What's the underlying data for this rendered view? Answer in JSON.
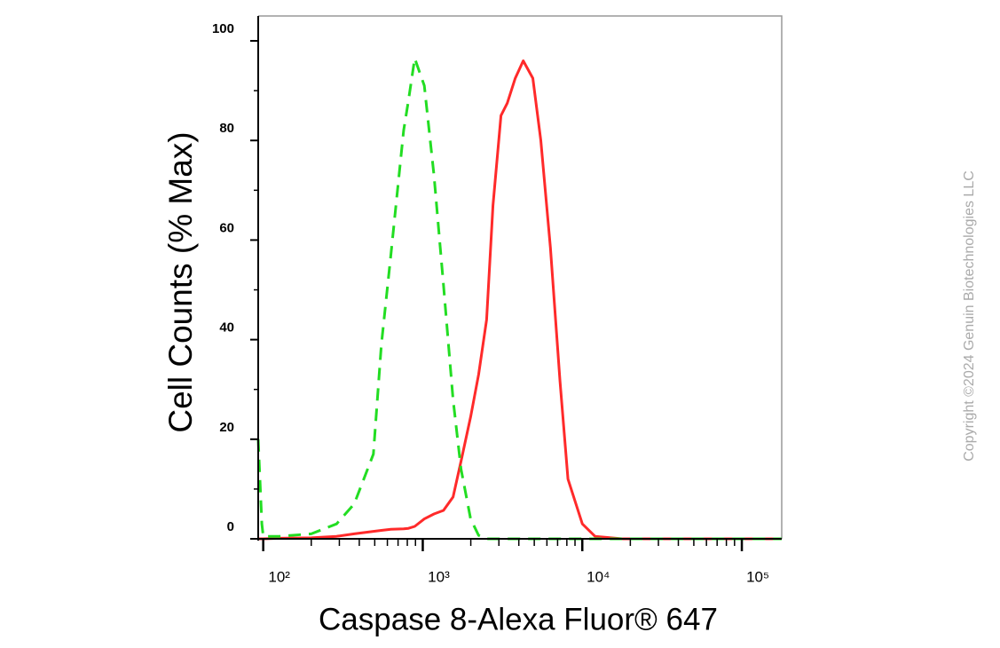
{
  "chart_data": {
    "type": "line",
    "xlabel": "Caspase 8-Alexa Fluor® 647",
    "ylabel": "Cell Counts (% Max)",
    "annotation": "Copyright ©2024 Genuin Biotechnologies LLC",
    "xscale": "log",
    "x": [
      93,
      98,
      100,
      126,
      200,
      288,
      372,
      490,
      550,
      631,
      759,
      813,
      891,
      1023,
      1175,
      1349,
      1549,
      1738,
      1995,
      2239,
      2512,
      2754,
      3090,
      3388,
      3802,
      4266,
      4898,
      5495,
      6310,
      7244,
      8128,
      10000,
      12023,
      17783,
      39811,
      100000,
      177828
    ],
    "series": [
      {
        "color": "#ff2a2a",
        "dash": false,
        "values": [
          0,
          0,
          0,
          0.1,
          0.2,
          0.5,
          1,
          1.5,
          1.7,
          1.9,
          2,
          2.1,
          2.5,
          4,
          5,
          5.7,
          8.4,
          15.6,
          24.5,
          33,
          44,
          67,
          85,
          87.5,
          92.5,
          96,
          92.5,
          80,
          58.5,
          31.7,
          12,
          3,
          0.5,
          0,
          0,
          0,
          0
        ]
      },
      {
        "color": "#22dd22",
        "dash": true,
        "values": [
          20,
          3,
          0.5,
          0.5,
          1,
          3,
          7,
          17,
          39,
          57,
          82,
          88,
          96.5,
          91,
          73,
          51,
          28,
          14,
          4,
          0.7,
          0,
          0,
          0,
          0,
          0,
          0,
          0,
          0,
          0,
          0,
          0,
          0,
          0,
          0,
          0,
          0,
          0
        ]
      }
    ],
    "xlim": [
      93,
      177828
    ],
    "ylim": [
      0,
      105
    ],
    "xticks": [
      {
        "value": 100,
        "label": "10²"
      },
      {
        "value": 1000,
        "label": "10³"
      },
      {
        "value": 10000,
        "label": "10⁴"
      },
      {
        "value": 100000,
        "label": "10⁵"
      }
    ],
    "xminorticks": [
      200,
      300,
      400,
      500,
      600,
      700,
      800,
      900,
      2000,
      3000,
      4000,
      5000,
      6000,
      7000,
      8000,
      9000,
      20000,
      30000,
      40000,
      50000,
      60000,
      70000,
      80000,
      90000
    ],
    "yticks": [
      0,
      20,
      40,
      60,
      80,
      100
    ],
    "yminorticks": [
      10,
      30,
      50,
      70,
      90
    ]
  }
}
